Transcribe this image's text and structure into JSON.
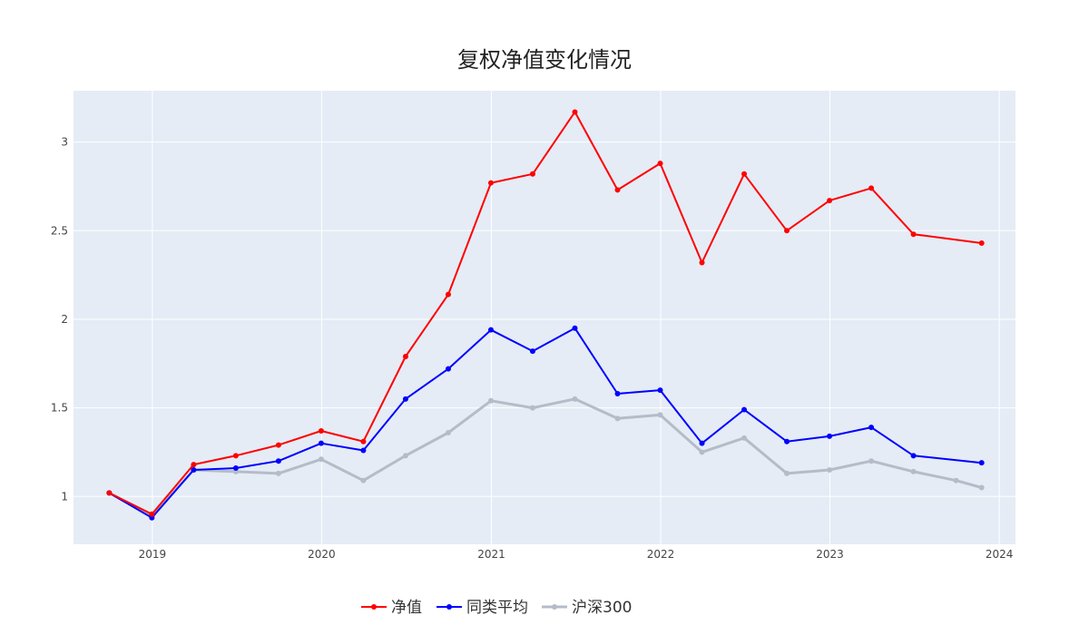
{
  "chart_data": {
    "type": "line",
    "title": "复权净值变化情况",
    "xlabel": "",
    "ylabel": "",
    "x_ticks": [
      "2019",
      "2020",
      "2021",
      "2022",
      "2023",
      "2024"
    ],
    "y_ticks": [
      "1",
      "1.5",
      "2",
      "2.5",
      "3"
    ],
    "xlim": [
      "2018-07-15",
      "2024-02-05"
    ],
    "ylim": [
      0.73,
      3.29
    ],
    "grid": true,
    "legend_position": "bottom",
    "plot_background": "#e5ecf6",
    "series": [
      {
        "name": "净值",
        "color": "#ff0000",
        "x": [
          "2018-09-30",
          "2018-12-31",
          "2019-03-31",
          "2019-06-30",
          "2019-09-30",
          "2019-12-31",
          "2020-03-31",
          "2020-06-30",
          "2020-09-30",
          "2020-12-31",
          "2021-03-31",
          "2021-06-30",
          "2021-09-30",
          "2021-12-31",
          "2022-03-31",
          "2022-06-30",
          "2022-09-30",
          "2022-12-31",
          "2023-03-31",
          "2023-06-30",
          "2023-11-24"
        ],
        "values": [
          1.02,
          0.9,
          1.18,
          1.23,
          1.29,
          1.37,
          1.31,
          1.79,
          2.14,
          2.77,
          2.82,
          3.17,
          2.73,
          2.88,
          2.32,
          2.82,
          2.5,
          2.67,
          2.74,
          2.48,
          2.43
        ]
      },
      {
        "name": "同类平均",
        "color": "#0000ff",
        "x": [
          "2018-09-30",
          "2018-12-31",
          "2019-03-31",
          "2019-06-30",
          "2019-09-30",
          "2019-12-31",
          "2020-03-31",
          "2020-06-30",
          "2020-09-30",
          "2020-12-31",
          "2021-03-31",
          "2021-06-30",
          "2021-09-30",
          "2021-12-31",
          "2022-03-31",
          "2022-06-30",
          "2022-09-30",
          "2022-12-31",
          "2023-03-31",
          "2023-06-30",
          "2023-11-24"
        ],
        "values": [
          1.02,
          0.88,
          1.15,
          1.16,
          1.2,
          1.3,
          1.26,
          1.55,
          1.72,
          1.94,
          1.82,
          1.95,
          1.58,
          1.6,
          1.3,
          1.49,
          1.31,
          1.34,
          1.39,
          1.23,
          1.19
        ]
      },
      {
        "name": "沪深300",
        "color": "#b4bcc8",
        "x": [
          "2018-09-30",
          "2018-12-31",
          "2019-03-31",
          "2019-06-30",
          "2019-09-30",
          "2019-12-31",
          "2020-03-31",
          "2020-06-30",
          "2020-09-30",
          "2020-12-31",
          "2021-03-31",
          "2021-06-30",
          "2021-09-30",
          "2021-12-31",
          "2022-03-31",
          "2022-06-30",
          "2022-09-30",
          "2022-12-31",
          "2023-03-31",
          "2023-06-30",
          "2023-09-30",
          "2023-11-24"
        ],
        "values": [
          1.02,
          0.89,
          1.15,
          1.14,
          1.13,
          1.21,
          1.09,
          1.23,
          1.36,
          1.54,
          1.5,
          1.55,
          1.44,
          1.46,
          1.25,
          1.33,
          1.13,
          1.15,
          1.2,
          1.14,
          1.09,
          1.05
        ]
      }
    ]
  }
}
